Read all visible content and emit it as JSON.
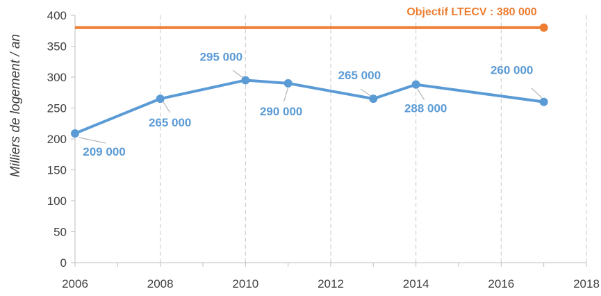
{
  "chart_data": {
    "type": "line",
    "ylabel": "Milliers de logement / an",
    "xlabel": "",
    "xlim": [
      2006,
      2018
    ],
    "ylim": [
      0,
      400
    ],
    "x_ticks": [
      2006,
      2008,
      2010,
      2012,
      2014,
      2016,
      2018
    ],
    "y_ticks": [
      0,
      50,
      100,
      150,
      200,
      250,
      300,
      350,
      400
    ],
    "grid": "vertical dashed",
    "series": [
      {
        "color": "#5b9bd5",
        "points": [
          {
            "x": 2006,
            "y": 209,
            "label": "209 000"
          },
          {
            "x": 2008,
            "y": 265,
            "label": "265 000"
          },
          {
            "x": 2010,
            "y": 295,
            "label": "295 000"
          },
          {
            "x": 2011,
            "y": 290,
            "label": "290 000"
          },
          {
            "x": 2013,
            "y": 265,
            "label": "265 000"
          },
          {
            "x": 2014,
            "y": 288,
            "label": "288 000"
          },
          {
            "x": 2017,
            "y": 260,
            "label": "260 000"
          }
        ]
      },
      {
        "color": "#ed7d31",
        "points": [
          {
            "x": 2006,
            "y": 380
          },
          {
            "x": 2017,
            "y": 380
          }
        ],
        "annotation": "Objectif LTECV : 380 000"
      }
    ]
  }
}
